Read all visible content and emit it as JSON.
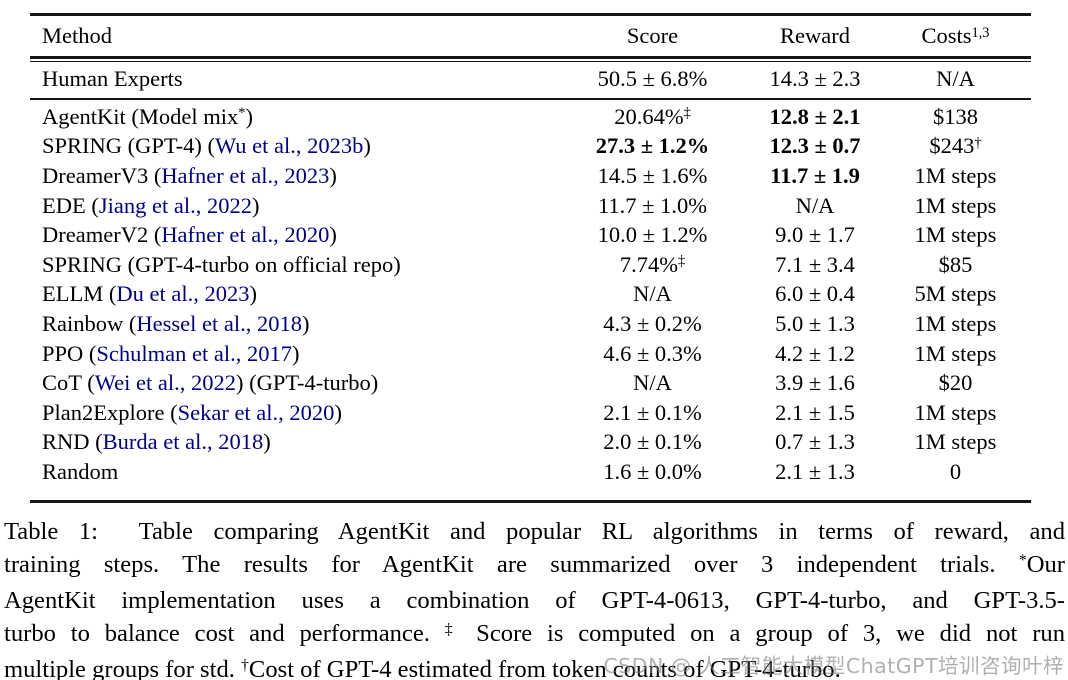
{
  "colors": {
    "text_color": "#000000",
    "cite_color": "#00008B",
    "rule_color": "#161616"
  },
  "table": {
    "headers": {
      "method": [
        {
          "t": "Method"
        }
      ],
      "score": [
        {
          "t": "Score"
        }
      ],
      "reward": [
        {
          "t": "Reward"
        }
      ],
      "costs": [
        {
          "t": "Costs"
        },
        {
          "t": "1,3",
          "sup": true
        }
      ]
    },
    "human_row": {
      "method": [
        {
          "t": "Human Experts"
        }
      ],
      "score": {
        "segs": [
          {
            "t": "50.5 ± 6.8%"
          }
        ],
        "bold": false
      },
      "reward": {
        "segs": [
          {
            "t": "14.3 ± 2.3"
          }
        ],
        "bold": false
      },
      "costs": {
        "segs": [
          {
            "t": "N/A"
          }
        ],
        "bold": false
      }
    },
    "rows": [
      {
        "method": [
          {
            "t": "AgentKit (Model mix"
          },
          {
            "t": "*",
            "sup": true
          },
          {
            "t": ")"
          }
        ],
        "score": {
          "segs": [
            {
              "t": "20.64%"
            },
            {
              "t": "‡",
              "sup": true
            }
          ],
          "bold": false
        },
        "reward": {
          "segs": [
            {
              "t": "12.8 ± 2.1"
            }
          ],
          "bold": true
        },
        "costs": {
          "segs": [
            {
              "t": "$138"
            }
          ],
          "bold": false
        }
      },
      {
        "method": [
          {
            "t": "SPRING (GPT-4) ("
          },
          {
            "t": "Wu et al., 2023b",
            "cite": true
          },
          {
            "t": ")"
          }
        ],
        "score": {
          "segs": [
            {
              "t": "27.3 ± 1.2%"
            }
          ],
          "bold": true
        },
        "reward": {
          "segs": [
            {
              "t": "12.3 ± 0.7"
            }
          ],
          "bold": true
        },
        "costs": {
          "segs": [
            {
              "t": "$243"
            },
            {
              "t": "†",
              "sup": true
            }
          ],
          "bold": false
        }
      },
      {
        "method": [
          {
            "t": "DreamerV3 ("
          },
          {
            "t": "Hafner et al., 2023",
            "cite": true
          },
          {
            "t": ")"
          }
        ],
        "score": {
          "segs": [
            {
              "t": "14.5 ± 1.6%"
            }
          ],
          "bold": false
        },
        "reward": {
          "segs": [
            {
              "t": "11.7 ± 1.9"
            }
          ],
          "bold": true
        },
        "costs": {
          "segs": [
            {
              "t": "1M steps"
            }
          ],
          "bold": false
        }
      },
      {
        "method": [
          {
            "t": "EDE ("
          },
          {
            "t": "Jiang et al., 2022",
            "cite": true
          },
          {
            "t": ")"
          }
        ],
        "score": {
          "segs": [
            {
              "t": "11.7 ± 1.0%"
            }
          ],
          "bold": false
        },
        "reward": {
          "segs": [
            {
              "t": "N/A"
            }
          ],
          "bold": false
        },
        "costs": {
          "segs": [
            {
              "t": "1M steps"
            }
          ],
          "bold": false
        }
      },
      {
        "method": [
          {
            "t": "DreamerV2 ("
          },
          {
            "t": "Hafner et al., 2020",
            "cite": true
          },
          {
            "t": ")"
          }
        ],
        "score": {
          "segs": [
            {
              "t": "10.0 ± 1.2%"
            }
          ],
          "bold": false
        },
        "reward": {
          "segs": [
            {
              "t": "9.0 ± 1.7"
            }
          ],
          "bold": false
        },
        "costs": {
          "segs": [
            {
              "t": "1M steps"
            }
          ],
          "bold": false
        }
      },
      {
        "method": [
          {
            "t": "SPRING (GPT-4-turbo on official repo)"
          }
        ],
        "score": {
          "segs": [
            {
              "t": "7.74%"
            },
            {
              "t": "‡",
              "sup": true
            }
          ],
          "bold": false
        },
        "reward": {
          "segs": [
            {
              "t": "7.1 ± 3.4"
            }
          ],
          "bold": false
        },
        "costs": {
          "segs": [
            {
              "t": "$85"
            }
          ],
          "bold": false
        }
      },
      {
        "method": [
          {
            "t": "ELLM ("
          },
          {
            "t": "Du et al., 2023",
            "cite": true
          },
          {
            "t": ")"
          }
        ],
        "score": {
          "segs": [
            {
              "t": "N/A"
            }
          ],
          "bold": false
        },
        "reward": {
          "segs": [
            {
              "t": "6.0 ± 0.4"
            }
          ],
          "bold": false
        },
        "costs": {
          "segs": [
            {
              "t": "5M steps"
            }
          ],
          "bold": false
        }
      },
      {
        "method": [
          {
            "t": "Rainbow ("
          },
          {
            "t": "Hessel et al., 2018",
            "cite": true
          },
          {
            "t": ")"
          }
        ],
        "score": {
          "segs": [
            {
              "t": "4.3 ± 0.2%"
            }
          ],
          "bold": false
        },
        "reward": {
          "segs": [
            {
              "t": "5.0 ± 1.3"
            }
          ],
          "bold": false
        },
        "costs": {
          "segs": [
            {
              "t": "1M steps"
            }
          ],
          "bold": false
        }
      },
      {
        "method": [
          {
            "t": "PPO ("
          },
          {
            "t": "Schulman et al., 2017",
            "cite": true
          },
          {
            "t": ")"
          }
        ],
        "score": {
          "segs": [
            {
              "t": "4.6 ± 0.3%"
            }
          ],
          "bold": false
        },
        "reward": {
          "segs": [
            {
              "t": "4.2 ± 1.2"
            }
          ],
          "bold": false
        },
        "costs": {
          "segs": [
            {
              "t": "1M steps"
            }
          ],
          "bold": false
        }
      },
      {
        "method": [
          {
            "t": "CoT ("
          },
          {
            "t": "Wei et al., 2022",
            "cite": true
          },
          {
            "t": ") (GPT-4-turbo)"
          }
        ],
        "score": {
          "segs": [
            {
              "t": "N/A"
            }
          ],
          "bold": false
        },
        "reward": {
          "segs": [
            {
              "t": "3.9 ± 1.6"
            }
          ],
          "bold": false
        },
        "costs": {
          "segs": [
            {
              "t": "$20"
            }
          ],
          "bold": false
        }
      },
      {
        "method": [
          {
            "t": "Plan2Explore ("
          },
          {
            "t": "Sekar et al., 2020",
            "cite": true
          },
          {
            "t": ")"
          }
        ],
        "score": {
          "segs": [
            {
              "t": "2.1 ± 0.1%"
            }
          ],
          "bold": false
        },
        "reward": {
          "segs": [
            {
              "t": "2.1 ± 1.5"
            }
          ],
          "bold": false
        },
        "costs": {
          "segs": [
            {
              "t": "1M steps"
            }
          ],
          "bold": false
        }
      },
      {
        "method": [
          {
            "t": "RND ("
          },
          {
            "t": "Burda et al., 2018",
            "cite": true
          },
          {
            "t": ")"
          }
        ],
        "score": {
          "segs": [
            {
              "t": "2.0 ± 0.1%"
            }
          ],
          "bold": false
        },
        "reward": {
          "segs": [
            {
              "t": "0.7 ± 1.3"
            }
          ],
          "bold": false
        },
        "costs": {
          "segs": [
            {
              "t": "1M steps"
            }
          ],
          "bold": false
        }
      },
      {
        "method": [
          {
            "t": "Random"
          }
        ],
        "score": {
          "segs": [
            {
              "t": "1.6 ± 0.0%"
            }
          ],
          "bold": false
        },
        "reward": {
          "segs": [
            {
              "t": "2.1 ± 1.3"
            }
          ],
          "bold": false
        },
        "costs": {
          "segs": [
            {
              "t": "0"
            }
          ],
          "bold": false
        }
      }
    ]
  },
  "caption": {
    "lines": [
      {
        "justify": true,
        "segs": [
          {
            "t": "Table 1:  Table comparing AgentKit and popular RL algorithms in terms of reward, and"
          }
        ]
      },
      {
        "justify": true,
        "segs": [
          {
            "t": "training steps. The results for AgentKit are summarized over 3 independent trials. "
          },
          {
            "t": "*",
            "sup": true
          },
          {
            "t": "Our"
          }
        ]
      },
      {
        "justify": true,
        "segs": [
          {
            "t": "AgentKit implementation uses a combination of GPT-4-0613, GPT-4-turbo, and GPT-3.5-"
          }
        ]
      },
      {
        "justify": true,
        "segs": [
          {
            "t": "turbo to balance cost and performance. "
          },
          {
            "t": "‡",
            "sup": true
          },
          {
            "t": " Score is computed on a group of 3, we did not run"
          }
        ]
      },
      {
        "justify": false,
        "segs": [
          {
            "t": "multiple groups for std. "
          },
          {
            "t": "†",
            "sup": true
          },
          {
            "t": "Cost of GPT-4 estimated from token counts of GPT-4-turbo."
          }
        ]
      }
    ]
  },
  "watermark": {
    "text": "CSDN @ 人工智能大模型ChatGPT培训咨询叶梓"
  }
}
